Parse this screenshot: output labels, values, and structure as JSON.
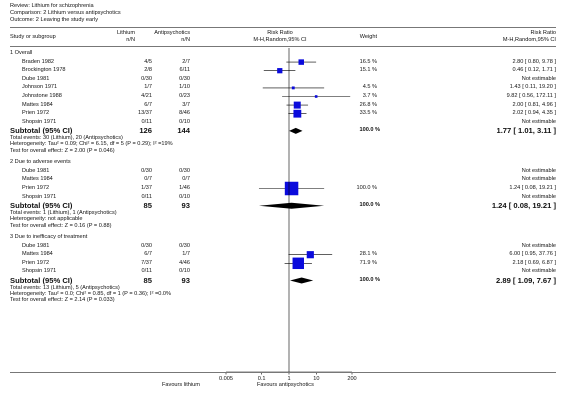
{
  "review": {
    "line1": "Review:  Lithium for schizophrenia",
    "line2": "Comparison:  2 Lithium versus antipsychotics",
    "line3": "Outcome:  2 Leaving the study early"
  },
  "header": {
    "study": "Study or subgroup",
    "g1": "Lithium",
    "g1_sub": "n/N",
    "g2": "Antipsychotics",
    "g2_sub": "n/N",
    "rr": "Risk Ratio",
    "rr_sub": "M-H,Random,95% CI",
    "weight": "Weight",
    "rr2": "Risk Ratio",
    "rr2_sub": "M-H,Random,95% CI"
  },
  "footer": {
    "ticks": [
      "0.005",
      "0.1",
      "1",
      "10",
      "200"
    ],
    "favours_left": "Favours lithium",
    "favours_right": "Favours antipsychotics"
  },
  "chart_data": {
    "type": "forest",
    "scale": "log",
    "xlim": [
      0.005,
      200
    ],
    "xticks": [
      0.005,
      0.1,
      1,
      10,
      200
    ],
    "marker_color": "#0a0adc",
    "groups": [
      {
        "title": "1 Overall",
        "studies": [
          {
            "name": "Braden 1982",
            "e1": "4/5",
            "e2": "2/7",
            "rr": 2.8,
            "lo": 0.8,
            "hi": 9.78,
            "weight": "16.5 %",
            "ci": "2.80 [ 0.80, 9.78 ]"
          },
          {
            "name": "Brockington 1978",
            "e1": "2/8",
            "e2": "6/11",
            "rr": 0.46,
            "lo": 0.12,
            "hi": 1.71,
            "weight": "15.1 %",
            "ci": "0.46 [ 0.12, 1.71 ]"
          },
          {
            "name": "Dube 1981",
            "e1": "0/30",
            "e2": "0/30",
            "rr": null,
            "weight": "",
            "ci": "Not estimable"
          },
          {
            "name": "Johnson 1971",
            "e1": "1/7",
            "e2": "1/10",
            "rr": 1.43,
            "lo": 0.11,
            "hi": 19.2,
            "weight": "4.5 %",
            "ci": "1.43 [ 0.11, 19.20 ]"
          },
          {
            "name": "Johnstone 1988",
            "e1": "4/21",
            "e2": "0/23",
            "rr": 9.82,
            "lo": 0.56,
            "hi": 172.11,
            "weight": "3.7 %",
            "ci": "9.82 [ 0.56, 172.11 ]"
          },
          {
            "name": "Mattes 1984",
            "e1": "6/7",
            "e2": "3/7",
            "rr": 2.0,
            "lo": 0.81,
            "hi": 4.96,
            "weight": "26.8 %",
            "ci": "2.00 [ 0.81, 4.96 ]"
          },
          {
            "name": "Prien 1972",
            "e1": "13/37",
            "e2": "8/46",
            "rr": 2.02,
            "lo": 0.94,
            "hi": 4.35,
            "weight": "33.5 %",
            "ci": "2.02 [ 0.94, 4.35 ]"
          },
          {
            "name": "Shopsin 1971",
            "e1": "0/11",
            "e2": "0/10",
            "rr": null,
            "weight": "",
            "ci": "Not estimable"
          }
        ],
        "subtotal": {
          "label": "Subtotal (95% CI)",
          "n1": "126",
          "n2": "144",
          "rr": 1.77,
          "lo": 1.01,
          "hi": 3.11,
          "weight": "100.0 %",
          "ci": "1.77 [ 1.01, 3.11 ]"
        },
        "notes": [
          "Total events: 30 (Lithium), 20 (Antipsychotics)",
          "Heterogeneity: Tau² = 0.09; Chi² = 6.15, df = 5 (P = 0.29); I² =19%",
          "Test for overall effect: Z = 2.00 (P = 0.046)"
        ]
      },
      {
        "title": "2 Due to adverse events",
        "studies": [
          {
            "name": "Dube 1981",
            "e1": "0/30",
            "e2": "0/30",
            "rr": null,
            "weight": "",
            "ci": "Not estimable"
          },
          {
            "name": "Mattes 1984",
            "e1": "0/7",
            "e2": "0/7",
            "rr": null,
            "weight": "",
            "ci": "Not estimable"
          },
          {
            "name": "Prien 1972",
            "e1": "1/37",
            "e2": "1/46",
            "rr": 1.24,
            "lo": 0.08,
            "hi": 19.21,
            "weight": "100.0 %",
            "ci": "1.24 [ 0.08, 19.21 ]"
          },
          {
            "name": "Shopsin 1971",
            "e1": "0/11",
            "e2": "0/10",
            "rr": null,
            "weight": "",
            "ci": "Not estimable"
          }
        ],
        "subtotal": {
          "label": "Subtotal (95% CI)",
          "n1": "85",
          "n2": "93",
          "rr": 1.24,
          "lo": 0.08,
          "hi": 19.21,
          "weight": "100.0 %",
          "ci": "1.24 [ 0.08, 19.21 ]"
        },
        "notes": [
          "Total events: 1 (Lithium), 1 (Antipsychotics)",
          "Heterogeneity: not applicable",
          "Test for overall effect: Z = 0.16 (P = 0.88)"
        ]
      },
      {
        "title": "3 Due to inefficacy of treatment",
        "studies": [
          {
            "name": "Dube 1981",
            "e1": "0/30",
            "e2": "0/30",
            "rr": null,
            "weight": "",
            "ci": "Not estimable"
          },
          {
            "name": "Mattes 1984",
            "e1": "6/7",
            "e2": "1/7",
            "rr": 6.0,
            "lo": 0.95,
            "hi": 37.76,
            "weight": "28.1 %",
            "ci": "6.00 [ 0.95, 37.76 ]"
          },
          {
            "name": "Prien 1972",
            "e1": "7/37",
            "e2": "4/46",
            "rr": 2.18,
            "lo": 0.69,
            "hi": 6.87,
            "weight": "71.9 %",
            "ci": "2.18 [ 0.69, 6.87 ]"
          },
          {
            "name": "Shopsin 1971",
            "e1": "0/11",
            "e2": "0/10",
            "rr": null,
            "weight": "",
            "ci": "Not estimable"
          }
        ],
        "subtotal": {
          "label": "Subtotal (95% CI)",
          "n1": "85",
          "n2": "93",
          "rr": 2.89,
          "lo": 1.09,
          "hi": 7.67,
          "weight": "100.0 %",
          "ci": "2.89 [ 1.09, 7.67 ]"
        },
        "notes": [
          "Total events: 13 (Lithium), 5 (Antipsychotics)",
          "Heterogeneity: Tau² = 0.0; Chi² = 0.85, df = 1 (P = 0.36); I² =0.0%",
          "Test for overall effect: Z = 2.14 (P = 0.033)"
        ]
      }
    ]
  }
}
